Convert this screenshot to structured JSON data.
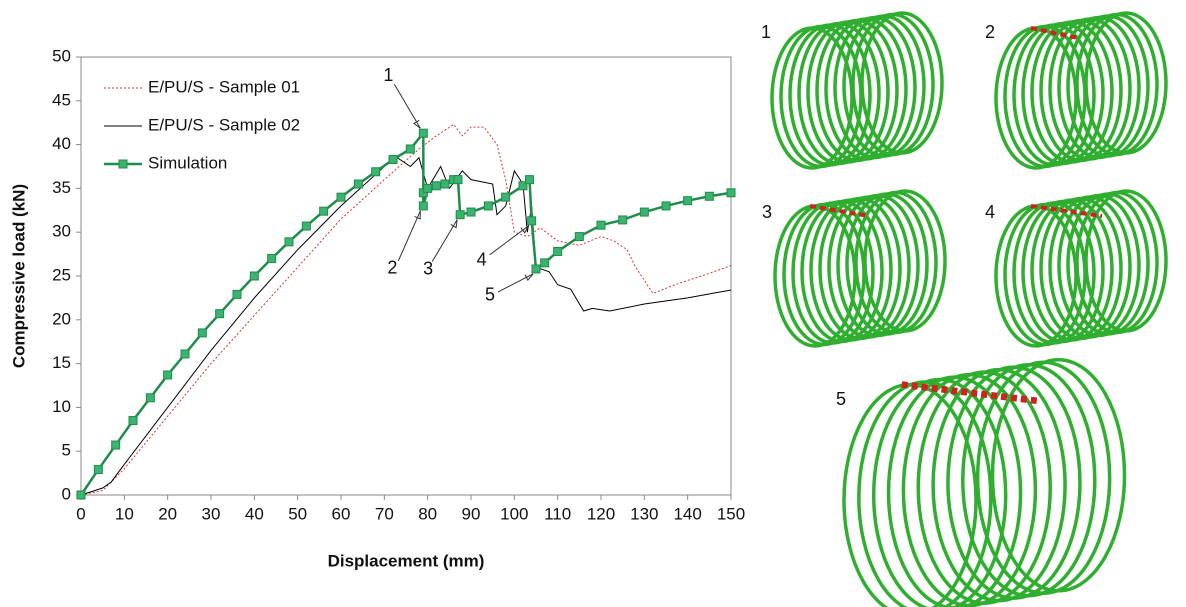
{
  "chart_data": {
    "type": "line",
    "xlabel": "Displacement (mm)",
    "ylabel": "Compressive load (kN)",
    "xlim": [
      0,
      150
    ],
    "ylim": [
      0,
      50
    ],
    "xticks": [
      0,
      10,
      20,
      30,
      40,
      50,
      60,
      70,
      80,
      90,
      100,
      110,
      120,
      130,
      140,
      150
    ],
    "yticks": [
      0,
      5,
      10,
      15,
      20,
      25,
      30,
      35,
      40,
      45,
      50
    ],
    "grid": false,
    "legend": "upper left",
    "series": [
      {
        "name": "E/PU/S - Sample 01",
        "color": "#e03030",
        "style": "dotted",
        "x": [
          0,
          5,
          10,
          20,
          30,
          40,
          50,
          60,
          70,
          78,
          82,
          86,
          88,
          90,
          93,
          96,
          98,
          100,
          103,
          106,
          110,
          115,
          120,
          123,
          126,
          128,
          132,
          136,
          140,
          145,
          150
        ],
        "values": [
          0,
          0.5,
          3,
          9,
          15,
          20.5,
          26,
          31.5,
          36,
          39.5,
          41,
          42.3,
          41,
          42,
          42,
          40,
          36,
          30,
          29.5,
          30.5,
          29,
          28.5,
          29.5,
          29,
          28,
          26,
          23,
          23.8,
          24.5,
          25.3,
          26.2
        ]
      },
      {
        "name": "E/PU/S - Sample 02",
        "color": "#000000",
        "style": "solid",
        "x": [
          0,
          5,
          7,
          10,
          20,
          30,
          40,
          50,
          60,
          70,
          73,
          76,
          78,
          80,
          83,
          85,
          88,
          90,
          95,
          96,
          98,
          100,
          102,
          103,
          104,
          105,
          108,
          110,
          113,
          116,
          118,
          122,
          130,
          140,
          150
        ],
        "values": [
          0,
          0.8,
          1.5,
          3.5,
          10,
          16.5,
          22.5,
          28,
          33,
          37.5,
          38.5,
          37.5,
          38.5,
          35,
          37.5,
          35,
          37,
          36,
          35.5,
          32,
          33,
          37,
          35.5,
          30,
          33,
          26,
          25.5,
          24,
          23.5,
          21,
          21.3,
          21,
          21.8,
          22.5,
          23.4
        ]
      },
      {
        "name": "Simulation",
        "color": "#1e8c4a",
        "marker_fill": "#3cb371",
        "style": "marker",
        "x": [
          0,
          4,
          8,
          12,
          16,
          20,
          24,
          28,
          32,
          36,
          40,
          44,
          48,
          52,
          56,
          60,
          64,
          68,
          72,
          76,
          79,
          79,
          79,
          80,
          82,
          84,
          86,
          87,
          87.5,
          90,
          94,
          98,
          102,
          103.5,
          104,
          105,
          107,
          110,
          115,
          120,
          125,
          130,
          135,
          140,
          145,
          150
        ],
        "values": [
          0,
          2.9,
          5.7,
          8.5,
          11.1,
          13.7,
          16.1,
          18.5,
          20.7,
          22.9,
          25,
          27,
          28.9,
          30.7,
          32.4,
          34,
          35.5,
          36.9,
          38.3,
          39.5,
          41.3,
          34.5,
          33,
          35,
          35.3,
          35.5,
          36,
          36,
          32,
          32.3,
          33,
          34,
          35.3,
          36,
          31.3,
          25.8,
          26.5,
          27.8,
          29.5,
          30.8,
          31.4,
          32.3,
          33,
          33.6,
          34.1,
          34.5
        ]
      }
    ],
    "annotations": [
      {
        "text": "1",
        "x": 79,
        "y": 41.3
      },
      {
        "text": "2",
        "x": 79,
        "y": 33
      },
      {
        "text": "3",
        "x": 87.5,
        "y": 32
      },
      {
        "text": "4",
        "x": 104,
        "y": 31.3
      },
      {
        "text": "5",
        "x": 105,
        "y": 25.8
      }
    ]
  },
  "figure_panels": [
    "1",
    "2",
    "3",
    "4",
    "5"
  ]
}
